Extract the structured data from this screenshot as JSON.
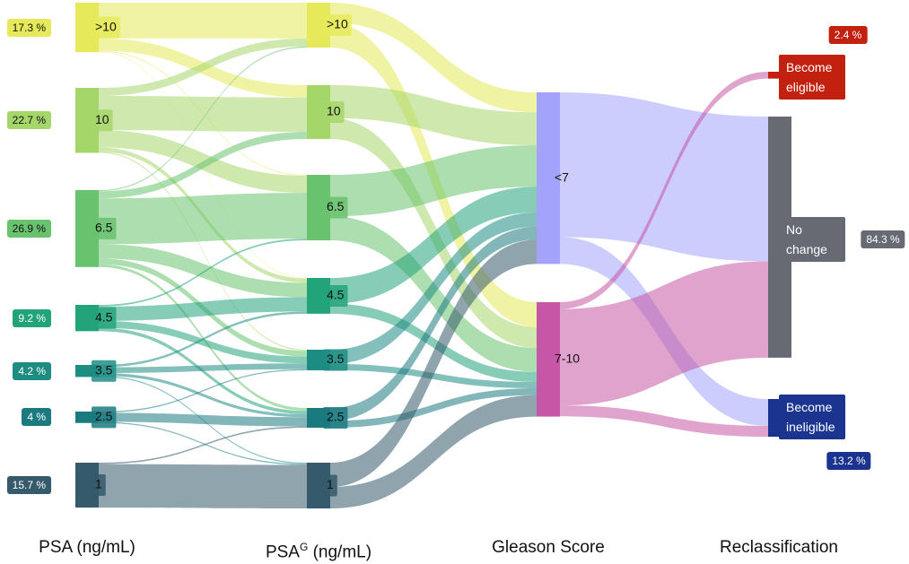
{
  "chart_data": {
    "type": "sankey",
    "column_titles": [
      "PSA (ng/mL)",
      [
        "PSA",
        "G",
        " (ng/mL)"
      ],
      "Gleason Score",
      "Reclassification"
    ],
    "nodes": [
      {
        "name": ">10",
        "column": 0,
        "color": "#e6ea5a",
        "value": 17.3,
        "value_label": "17.3 %"
      },
      {
        "name": "10",
        "column": 0,
        "color": "#a5d66a",
        "value": 22.7,
        "value_label": "22.7 %"
      },
      {
        "name": "6.5",
        "column": 0,
        "color": "#68c26e",
        "value": 26.9,
        "value_label": "26.9 %"
      },
      {
        "name": "4.5",
        "column": 0,
        "color": "#23a37a",
        "value": 9.2,
        "value_label": "9.2 %"
      },
      {
        "name": "3.5",
        "column": 0,
        "color": "#1d8d84",
        "value": 4.2,
        "value_label": "4.2 %"
      },
      {
        "name": "2.5",
        "column": 0,
        "color": "#1b7a7f",
        "value": 4,
        "value_label": "4 %"
      },
      {
        "name": "1",
        "column": 0,
        "color": "#355a6b",
        "value": 15.7,
        "value_label": "15.7 %"
      },
      {
        "name": ">10",
        "column": 1,
        "color": "#e6ea5a"
      },
      {
        "name": "10",
        "column": 1,
        "color": "#a5d66a"
      },
      {
        "name": "6.5",
        "column": 1,
        "color": "#68c26e"
      },
      {
        "name": "4.5",
        "column": 1,
        "color": "#23a37a"
      },
      {
        "name": "3.5",
        "column": 1,
        "color": "#1d8d84"
      },
      {
        "name": "2.5",
        "column": 1,
        "color": "#1b7a7f"
      },
      {
        "name": "1",
        "column": 1,
        "color": "#355a6b"
      },
      {
        "name": "<7",
        "column": 2,
        "color": "#a3a3fb"
      },
      {
        "name": "7-10",
        "column": 2,
        "color": "#c557a6"
      },
      {
        "name": "Become eligible",
        "column": 3,
        "color": "#c1210e",
        "value": 2.4,
        "value_label": "2.4 %"
      },
      {
        "name": "No change",
        "column": 3,
        "color": "#676a72",
        "value": 84.3,
        "value_label": "84.3 %"
      },
      {
        "name": "Become ineligible",
        "column": 3,
        "color": "#1a348f",
        "value": 13.2,
        "value_label": "13.2 %"
      }
    ],
    "links": [
      {
        "source": 0,
        "target": 7,
        "value": 12.5
      },
      {
        "source": 0,
        "target": 8,
        "value": 4.3
      },
      {
        "source": 0,
        "target": 9,
        "value": 0.3
      },
      {
        "source": 0,
        "target": 10,
        "value": 0.2
      },
      {
        "source": 1,
        "target": 7,
        "value": 2.8
      },
      {
        "source": 1,
        "target": 8,
        "value": 12
      },
      {
        "source": 1,
        "target": 9,
        "value": 6
      },
      {
        "source": 1,
        "target": 10,
        "value": 1.5
      },
      {
        "source": 1,
        "target": 11,
        "value": 0.4
      },
      {
        "source": 2,
        "target": 7,
        "value": 0.4
      },
      {
        "source": 2,
        "target": 8,
        "value": 2.5
      },
      {
        "source": 2,
        "target": 9,
        "value": 16
      },
      {
        "source": 2,
        "target": 10,
        "value": 5
      },
      {
        "source": 2,
        "target": 11,
        "value": 2
      },
      {
        "source": 2,
        "target": 12,
        "value": 1
      },
      {
        "source": 3,
        "target": 9,
        "value": 0.6
      },
      {
        "source": 3,
        "target": 10,
        "value": 5
      },
      {
        "source": 3,
        "target": 11,
        "value": 2.4
      },
      {
        "source": 3,
        "target": 12,
        "value": 1.2
      },
      {
        "source": 4,
        "target": 10,
        "value": 0.8
      },
      {
        "source": 4,
        "target": 11,
        "value": 2
      },
      {
        "source": 4,
        "target": 12,
        "value": 1
      },
      {
        "source": 4,
        "target": 13,
        "value": 0.4
      },
      {
        "source": 5,
        "target": 11,
        "value": 0.4
      },
      {
        "source": 5,
        "target": 12,
        "value": 3.2
      },
      {
        "source": 5,
        "target": 13,
        "value": 0.4
      },
      {
        "source": 6,
        "target": 12,
        "value": 0.5
      },
      {
        "source": 6,
        "target": 13,
        "value": 15.2
      },
      {
        "source": 7,
        "target": 14,
        "value": 7
      },
      {
        "source": 7,
        "target": 15,
        "value": 8.7
      },
      {
        "source": 8,
        "target": 14,
        "value": 11.5
      },
      {
        "source": 8,
        "target": 15,
        "value": 7.3
      },
      {
        "source": 9,
        "target": 14,
        "value": 14.5
      },
      {
        "source": 9,
        "target": 15,
        "value": 8.4
      },
      {
        "source": 10,
        "target": 14,
        "value": 9
      },
      {
        "source": 10,
        "target": 15,
        "value": 3.5
      },
      {
        "source": 11,
        "target": 14,
        "value": 5
      },
      {
        "source": 11,
        "target": 15,
        "value": 2.2
      },
      {
        "source": 12,
        "target": 14,
        "value": 4.5
      },
      {
        "source": 12,
        "target": 15,
        "value": 2.4
      },
      {
        "source": 13,
        "target": 14,
        "value": 8.5
      },
      {
        "source": 13,
        "target": 15,
        "value": 7.5
      },
      {
        "source": 14,
        "target": 17,
        "value": 50.6
      },
      {
        "source": 14,
        "target": 18,
        "value": 9.4
      },
      {
        "source": 15,
        "target": 16,
        "value": 2.4
      },
      {
        "source": 15,
        "target": 17,
        "value": 33.7
      },
      {
        "source": 15,
        "target": 18,
        "value": 3.8
      }
    ]
  }
}
